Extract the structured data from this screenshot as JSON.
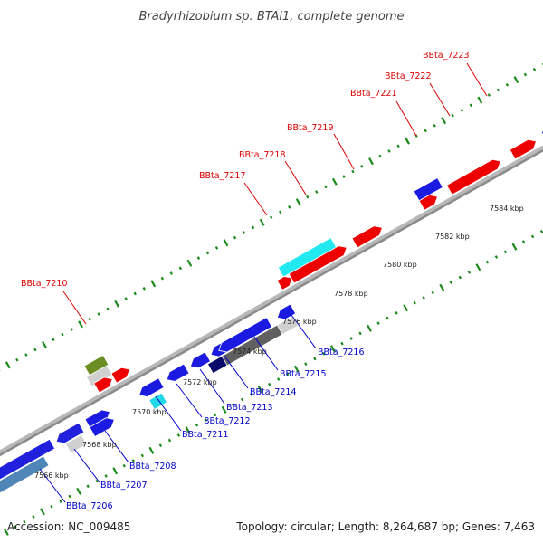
{
  "title": "Bradyrhizobium sp. BTAi1, complete genome",
  "footer": {
    "accession": "Accession: NC_009485",
    "topology": "Topology: circular; Length: 8,264,687 bp; Genes: 7,463"
  },
  "colors": {
    "forward_label": "#dd0000",
    "reverse_label": "#0000cc",
    "backbone": "#8a8a8a",
    "tick": "#1a8a1a"
  },
  "scale_labels": [
    "7566 kbp",
    "7568 kbp",
    "7570 kbp",
    "7572 kbp",
    "7574 kbp",
    "7576 kbp",
    "7578 kbp",
    "7580 kbp",
    "7582 kbp",
    "7584 kbp"
  ],
  "forward_genes": [
    {
      "name": "BBta_7210"
    },
    {
      "name": "BBta_7217"
    },
    {
      "name": "BBta_7218"
    },
    {
      "name": "BBta_7219"
    },
    {
      "name": "BBta_7221"
    },
    {
      "name": "BBta_7222"
    },
    {
      "name": "BBta_7223"
    }
  ],
  "reverse_genes": [
    {
      "name": "BBta_7206"
    },
    {
      "name": "BBta_7207"
    },
    {
      "name": "BBta_7208"
    },
    {
      "name": "BBta_7211"
    },
    {
      "name": "BBta_7212"
    },
    {
      "name": "BBta_7213"
    },
    {
      "name": "BBta_7214"
    },
    {
      "name": "BBta_7215"
    },
    {
      "name": "BBta_7216"
    }
  ]
}
